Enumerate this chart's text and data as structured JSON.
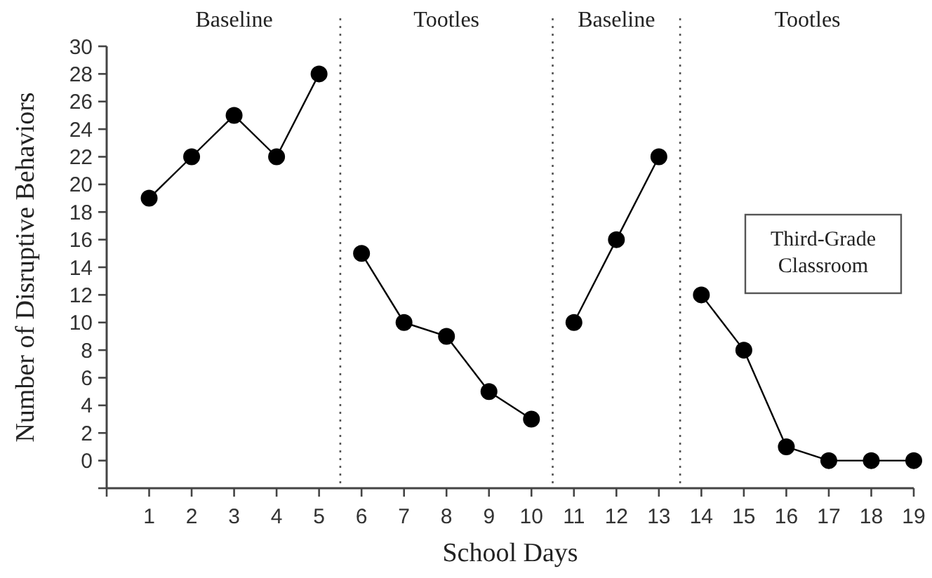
{
  "chart_data": {
    "type": "line",
    "xlabel": "School Days",
    "ylabel": "Number of Disruptive Behaviors",
    "series": [
      {
        "color": "#000000",
        "x": [
          1,
          2,
          3,
          4,
          5
        ],
        "values": [
          19,
          22,
          25,
          22,
          28
        ]
      },
      {
        "color": "#000000",
        "x": [
          6,
          7,
          8,
          9,
          10
        ],
        "values": [
          15,
          10,
          9,
          5,
          3
        ]
      },
      {
        "color": "#000000",
        "x": [
          11,
          12,
          13
        ],
        "values": [
          10,
          16,
          22
        ]
      },
      {
        "color": "#000000",
        "x": [
          14,
          15,
          16,
          17,
          18,
          19
        ],
        "values": [
          12,
          8,
          1,
          0,
          0,
          0
        ]
      }
    ],
    "xlim": [
      0,
      19
    ],
    "xticks": [
      {
        "value": 0,
        "label": null
      },
      1,
      2,
      3,
      4,
      5,
      6,
      7,
      8,
      9,
      10,
      11,
      12,
      13,
      14,
      15,
      16,
      17,
      18,
      19
    ],
    "ylim": [
      -2,
      30
    ],
    "yticks": [
      {
        "value": -2,
        "label": null
      },
      0,
      2,
      4,
      6,
      8,
      10,
      12,
      14,
      16,
      18,
      20,
      22,
      24,
      26,
      28,
      30
    ],
    "ref_lines": [
      {
        "axis": "x",
        "value": 5.5,
        "line_style": "dotted"
      },
      {
        "axis": "x",
        "value": 10.5,
        "line_style": "dotted"
      },
      {
        "axis": "x",
        "value": 13.5,
        "line_style": "dotted"
      }
    ],
    "annotations": [
      "Baseline",
      "Tootles",
      "Baseline",
      "Tootles",
      "Third-Grade Classroom"
    ],
    "marker": "circle",
    "line_style": "solid"
  }
}
